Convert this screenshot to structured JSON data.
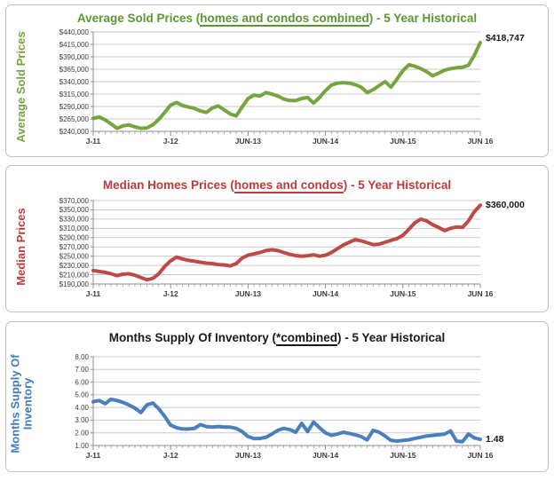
{
  "chart_data": [
    {
      "type": "line",
      "title_prefix": "Average Sold Prices (",
      "title_underline": "homes and condos combined",
      "title_suffix": ") - 5 Year Historical",
      "ylabel": "Average Sold Prices",
      "line_color": "#76a53f",
      "end_label": "$418,747",
      "ylim": [
        240000,
        440000
      ],
      "y_tick_labels": [
        "$440,000",
        "$415,000",
        "$390,000",
        "$365,000",
        "$340,000",
        "$315,000",
        "$290,000",
        "$265,000",
        "$240,000"
      ],
      "x_labels": [
        "J-11",
        "J-12",
        "JUN-13",
        "JUN-14",
        "JUN-15",
        "JUN 16"
      ],
      "grid": true,
      "values": [
        266000,
        269000,
        263000,
        255000,
        246000,
        251000,
        253000,
        249000,
        246000,
        247000,
        253000,
        264000,
        278000,
        293000,
        298000,
        292000,
        289000,
        286000,
        281000,
        278000,
        287000,
        291000,
        283000,
        275000,
        271000,
        289000,
        306000,
        313000,
        311000,
        318000,
        315000,
        311000,
        305000,
        302000,
        302000,
        306000,
        308000,
        297000,
        308000,
        322000,
        333000,
        337000,
        338000,
        337000,
        334000,
        329000,
        318000,
        324000,
        332000,
        340000,
        329000,
        345000,
        362000,
        374000,
        371000,
        366000,
        360000,
        352000,
        357000,
        363000,
        366000,
        368000,
        369000,
        373000,
        393000,
        418747
      ]
    },
    {
      "type": "line",
      "title_prefix": "Median Homes Prices (",
      "title_underline": "homes and condos",
      "title_suffix": ") - 5 Year Historical",
      "ylabel": "Median Prices",
      "line_color": "#be4a45",
      "end_label": "$360,000",
      "ylim": [
        190000,
        370000
      ],
      "y_tick_labels": [
        "$370,000",
        "$350,000",
        "$330,000",
        "$310,000",
        "$290,000",
        "$270,000",
        "$250,000",
        "$230,000",
        "$210,000",
        "$190,000"
      ],
      "x_labels": [
        "J-11",
        "J-12",
        "JUN-13",
        "JUN-14",
        "JUN-15",
        "JUN 16"
      ],
      "grid": true,
      "values": [
        219000,
        217000,
        215000,
        212000,
        208000,
        211000,
        212000,
        209000,
        204000,
        199000,
        202000,
        212000,
        228000,
        240000,
        248000,
        244000,
        241000,
        239000,
        237000,
        235000,
        234000,
        232000,
        231000,
        229000,
        234000,
        246000,
        252000,
        255000,
        258000,
        262000,
        264000,
        262000,
        258000,
        254000,
        251000,
        250000,
        251000,
        253000,
        250000,
        252000,
        258000,
        266000,
        274000,
        280000,
        286000,
        283000,
        279000,
        275000,
        276000,
        280000,
        284000,
        288000,
        295000,
        308000,
        322000,
        330000,
        326000,
        318000,
        312000,
        305000,
        310000,
        313000,
        312000,
        326000,
        346000,
        360000
      ]
    },
    {
      "type": "line",
      "title_prefix": "Months Supply Of Inventory (",
      "title_underline": "*combined",
      "title_suffix": ") - 5 Year Historical",
      "ylabel": "Months Supply Of\nInventory",
      "line_color": "#4a7ebd",
      "end_label": "1.48",
      "ylim": [
        1,
        8
      ],
      "y_tick_labels": [
        "8.00",
        "7.00",
        "6.00",
        "5.00",
        "4.00",
        "3.00",
        "2.00",
        "1.00"
      ],
      "x_labels": [
        "J-11",
        "J-12",
        "JUN-13",
        "JUN-14",
        "JUN-15",
        "JUN 16"
      ],
      "grid": true,
      "values": [
        4.45,
        4.55,
        4.3,
        4.65,
        4.55,
        4.4,
        4.2,
        3.95,
        3.6,
        4.2,
        4.35,
        3.9,
        3.3,
        2.6,
        2.4,
        2.3,
        2.3,
        2.35,
        2.65,
        2.5,
        2.45,
        2.5,
        2.45,
        2.45,
        2.35,
        2.1,
        1.7,
        1.55,
        1.55,
        1.65,
        1.9,
        2.2,
        2.35,
        2.25,
        2.05,
        2.75,
        2.1,
        2.85,
        2.4,
        2.0,
        1.8,
        1.9,
        2.05,
        1.95,
        1.85,
        1.7,
        1.45,
        2.2,
        2.05,
        1.75,
        1.4,
        1.35,
        1.4,
        1.45,
        1.55,
        1.65,
        1.75,
        1.8,
        1.85,
        1.9,
        2.15,
        1.35,
        1.3,
        1.9,
        1.6,
        1.48
      ]
    }
  ]
}
